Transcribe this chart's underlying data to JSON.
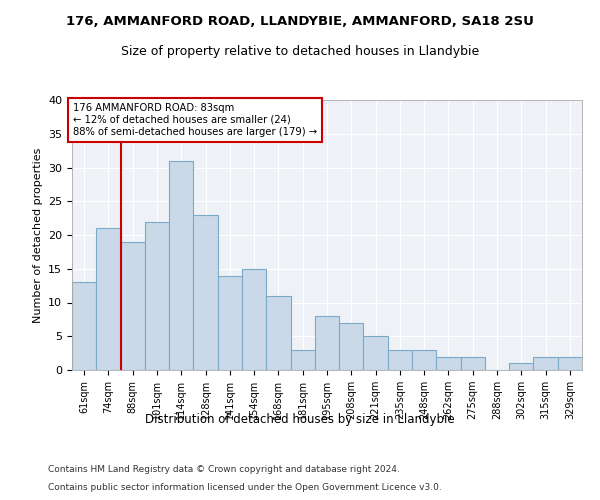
{
  "title1": "176, AMMANFORD ROAD, LLANDYBIE, AMMANFORD, SA18 2SU",
  "title2": "Size of property relative to detached houses in Llandybie",
  "xlabel": "Distribution of detached houses by size in Llandybie",
  "ylabel": "Number of detached properties",
  "categories": [
    "61sqm",
    "74sqm",
    "88sqm",
    "101sqm",
    "114sqm",
    "128sqm",
    "141sqm",
    "154sqm",
    "168sqm",
    "181sqm",
    "195sqm",
    "208sqm",
    "221sqm",
    "235sqm",
    "248sqm",
    "262sqm",
    "275sqm",
    "288sqm",
    "302sqm",
    "315sqm",
    "329sqm"
  ],
  "values": [
    13,
    21,
    19,
    22,
    31,
    23,
    14,
    15,
    11,
    3,
    8,
    7,
    5,
    3,
    3,
    2,
    2,
    0,
    1,
    2,
    2
  ],
  "bar_color": "#c9d9e8",
  "bar_edge_color": "#7aaac8",
  "vline_x": 1.5,
  "vline_color": "#cc0000",
  "annotation_title": "176 AMMANFORD ROAD: 83sqm",
  "annotation_line1": "← 12% of detached houses are smaller (24)",
  "annotation_line2": "88% of semi-detached houses are larger (179) →",
  "annotation_box_color": "#ffffff",
  "annotation_box_edge": "#cc0000",
  "ylim": [
    0,
    40
  ],
  "yticks": [
    0,
    5,
    10,
    15,
    20,
    25,
    30,
    35,
    40
  ],
  "footer1": "Contains HM Land Registry data © Crown copyright and database right 2024.",
  "footer2": "Contains public sector information licensed under the Open Government Licence v3.0.",
  "plot_bg_color": "#eef2f7"
}
